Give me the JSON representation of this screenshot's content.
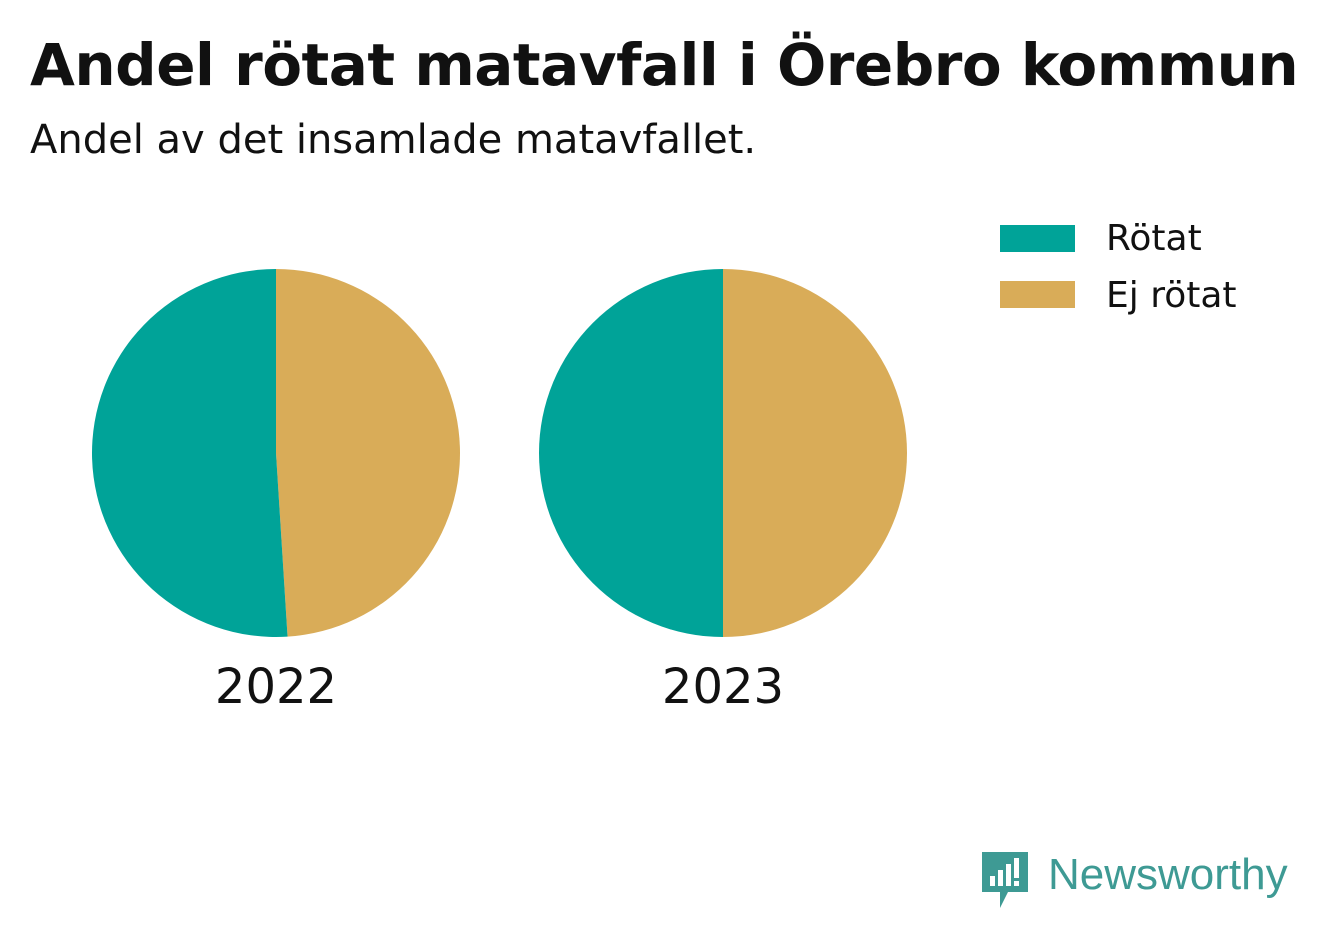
{
  "title": "Andel rötat matavfall i Örebro kommun",
  "subtitle": "Andel av det insamlade matavfallet.",
  "colors": {
    "rotat": "#00A398",
    "ej_rotat": "#D9AC58",
    "text": "#111111",
    "brand": "#3E9A94"
  },
  "chart_data": {
    "type": "pie",
    "title": "Andel rötat matavfall i Örebro kommun",
    "subtitle": "Andel av det insamlade matavfallet.",
    "legend": [
      "Rötat",
      "Ej rötat"
    ],
    "legend_position": "top-right",
    "pies": [
      {
        "label": "2022",
        "slices": [
          {
            "name": "Rötat",
            "value": 0.51
          },
          {
            "name": "Ej rötat",
            "value": 0.49
          }
        ]
      },
      {
        "label": "2023",
        "slices": [
          {
            "name": "Rötat",
            "value": 0.5
          },
          {
            "name": "Ej rötat",
            "value": 0.5
          }
        ]
      }
    ]
  },
  "brand": {
    "name": "Newsworthy"
  }
}
